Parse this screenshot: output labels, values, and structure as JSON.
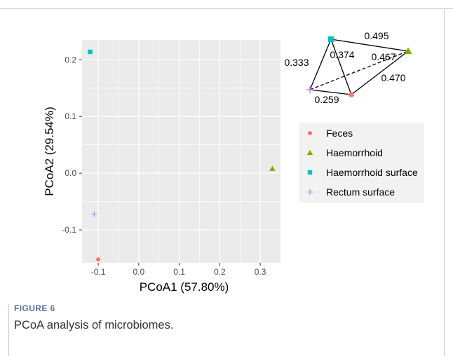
{
  "figure": {
    "label": "FIGURE 6",
    "caption": "PCoA analysis of microbiomes."
  },
  "chart_data": {
    "type": "scatter",
    "xlabel": "PCoA1 (57.80%)",
    "ylabel": "PCoA2 (29.54%)",
    "xlim": [
      -0.14,
      0.35
    ],
    "ylim": [
      -0.158,
      0.235
    ],
    "xticks": [
      -0.1,
      0.0,
      0.1,
      0.2,
      0.3
    ],
    "xtick_labels": [
      "-0.1",
      "0.0",
      "0.1",
      "0.2",
      "0.3"
    ],
    "yticks": [
      -0.1,
      0.0,
      0.1,
      0.2
    ],
    "ytick_labels": [
      "-0.1",
      "0.0",
      "0.1",
      "0.2"
    ],
    "grid": true,
    "legend_position": "right",
    "series": [
      {
        "name": "Feces",
        "marker": "circle",
        "color": "#F8766D",
        "x": [
          -0.1
        ],
        "y": [
          -0.152
        ]
      },
      {
        "name": "Haemorrhoid",
        "marker": "triangle",
        "color": "#7CAE00",
        "x": [
          0.33
        ],
        "y": [
          0.008
        ]
      },
      {
        "name": "Haemorrhoid surface",
        "marker": "square",
        "color": "#00BFC4",
        "x": [
          -0.12
        ],
        "y": [
          0.214
        ]
      },
      {
        "name": "Rectum surface",
        "marker": "plus",
        "color": "#C77CFF",
        "x": [
          -0.11
        ],
        "y": [
          -0.072
        ]
      }
    ],
    "distance_diagram": {
      "nodes": [
        {
          "group": "Haemorrhoid surface",
          "marker": "square",
          "color": "#00BFC4"
        },
        {
          "group": "Haemorrhoid",
          "marker": "triangle",
          "color": "#7CAE00"
        },
        {
          "group": "Feces",
          "marker": "circle",
          "color": "#F8766D"
        },
        {
          "group": "Rectum surface",
          "marker": "plus",
          "color": "#C77CFF"
        }
      ],
      "edges": [
        {
          "from": "Haemorrhoid surface",
          "to": "Haemorrhoid",
          "distance": "0.495",
          "style": "solid"
        },
        {
          "from": "Haemorrhoid surface",
          "to": "Feces",
          "distance": "0.374",
          "style": "solid"
        },
        {
          "from": "Rectum surface",
          "to": "Haemorrhoid",
          "distance": "0.467",
          "style": "dashed"
        },
        {
          "from": "Haemorrhoid",
          "to": "Feces",
          "distance": "0.470",
          "style": "solid"
        },
        {
          "from": "Haemorrhoid surface",
          "to": "Rectum surface",
          "distance": "0.333",
          "style": "solid"
        },
        {
          "from": "Rectum surface",
          "to": "Feces",
          "distance": "0.259",
          "style": "solid"
        }
      ]
    }
  }
}
